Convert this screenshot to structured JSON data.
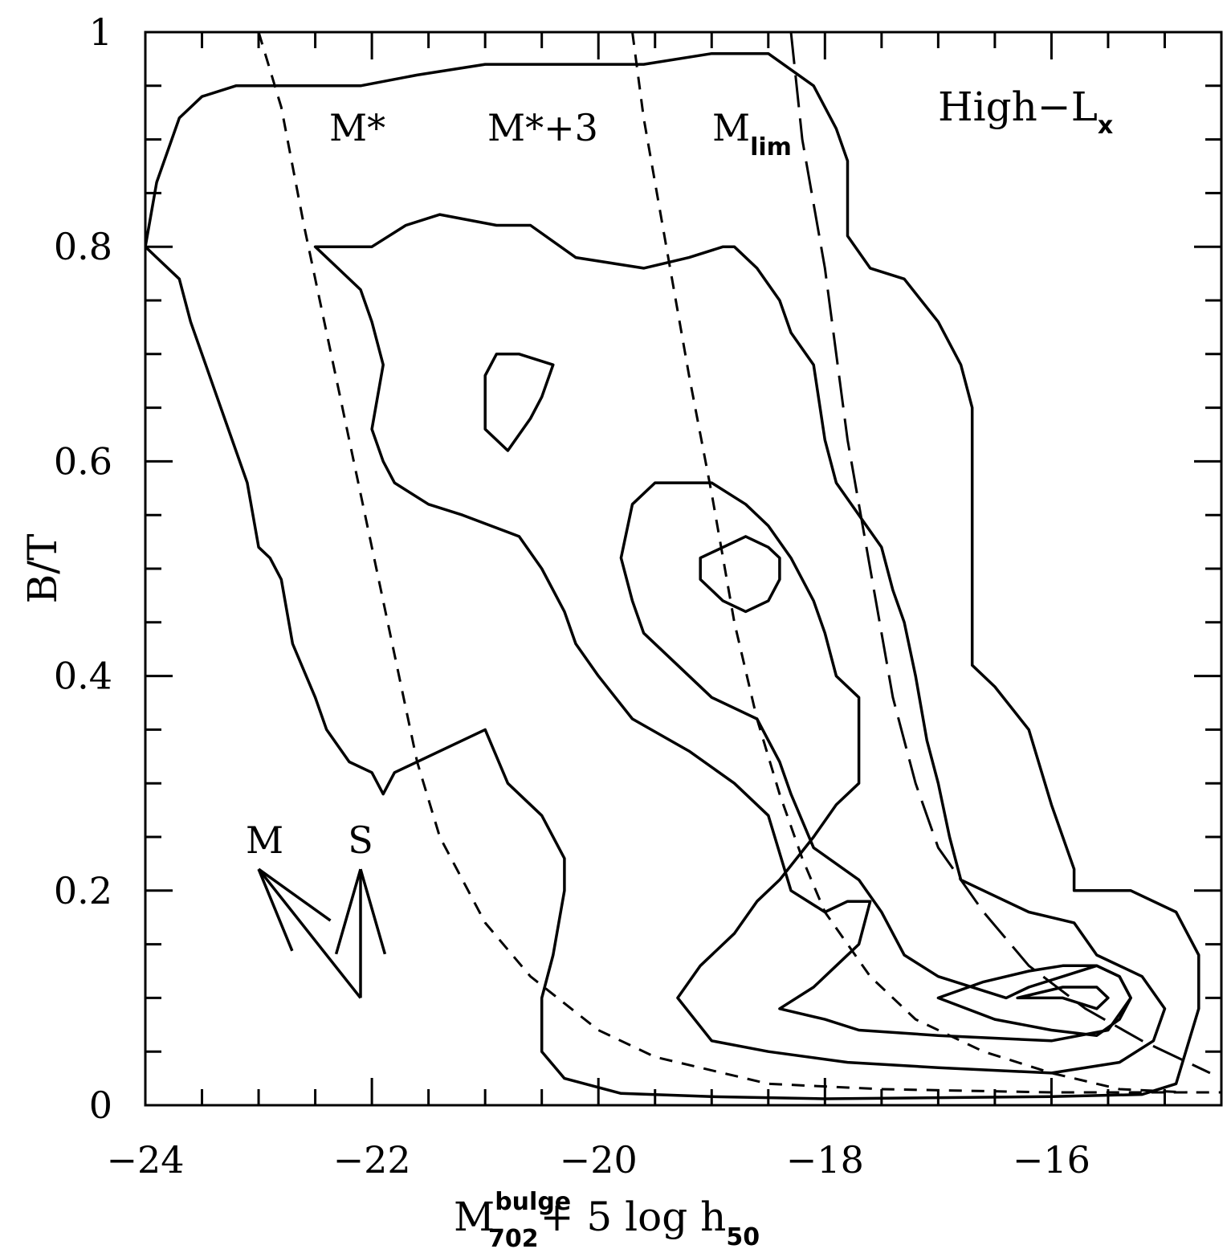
{
  "chart_data": {
    "type": "contour",
    "panel_label": {
      "main": "High−L",
      "sub": "x"
    },
    "xlabel": {
      "main": "M",
      "sup": "bulge",
      "sub": "702",
      "rest": "+ 5 log h",
      "rest_sub": "50"
    },
    "ylabel": "B/T",
    "xlim": [
      -24,
      -14.5
    ],
    "ylim": [
      0,
      1
    ],
    "x_ticks": [
      -24,
      -22,
      -20,
      -18,
      -16
    ],
    "x_tick_labels": [
      "−24",
      "−22",
      "−20",
      "−18",
      "−16"
    ],
    "y_ticks": [
      0,
      0.2,
      0.4,
      0.6,
      0.8,
      1
    ],
    "y_tick_labels": [
      "0",
      "0.2",
      "0.4",
      "0.6",
      "0.8",
      "1"
    ],
    "contours": [
      {
        "level": 1,
        "closed": true,
        "points": [
          [
            -23.0,
            0.95
          ],
          [
            -22.1,
            0.95
          ],
          [
            -21.6,
            0.96
          ],
          [
            -21.0,
            0.97
          ],
          [
            -20.4,
            0.97
          ],
          [
            -19.6,
            0.97
          ],
          [
            -19.0,
            0.98
          ],
          [
            -18.5,
            0.98
          ],
          [
            -18.1,
            0.95
          ],
          [
            -17.9,
            0.91
          ],
          [
            -17.8,
            0.88
          ],
          [
            -17.8,
            0.81
          ],
          [
            -17.6,
            0.78
          ],
          [
            -17.3,
            0.77
          ],
          [
            -17.0,
            0.73
          ],
          [
            -16.8,
            0.69
          ],
          [
            -16.7,
            0.65
          ],
          [
            -16.7,
            0.41
          ],
          [
            -16.5,
            0.39
          ],
          [
            -16.2,
            0.35
          ],
          [
            -16.0,
            0.28
          ],
          [
            -15.8,
            0.22
          ],
          [
            -15.8,
            0.2
          ],
          [
            -15.3,
            0.2
          ],
          [
            -14.9,
            0.18
          ],
          [
            -14.7,
            0.14
          ],
          [
            -14.7,
            0.09
          ],
          [
            -14.9,
            0.02
          ],
          [
            -15.2,
            0.01
          ],
          [
            -16.0,
            0.008
          ],
          [
            -17.0,
            0.007
          ],
          [
            -18.0,
            0.006
          ],
          [
            -19.0,
            0.008
          ],
          [
            -19.8,
            0.011
          ],
          [
            -20.3,
            0.025
          ],
          [
            -20.5,
            0.05
          ],
          [
            -20.5,
            0.1
          ],
          [
            -20.4,
            0.14
          ],
          [
            -20.3,
            0.2
          ],
          [
            -20.3,
            0.23
          ],
          [
            -20.5,
            0.27
          ],
          [
            -20.8,
            0.3
          ],
          [
            -21.0,
            0.35
          ],
          [
            -21.8,
            0.31
          ],
          [
            -21.9,
            0.29
          ],
          [
            -22.0,
            0.31
          ],
          [
            -22.2,
            0.32
          ],
          [
            -22.4,
            0.35
          ],
          [
            -22.5,
            0.38
          ],
          [
            -22.7,
            0.43
          ],
          [
            -22.8,
            0.49
          ],
          [
            -22.9,
            0.51
          ],
          [
            -23.0,
            0.52
          ],
          [
            -23.1,
            0.58
          ],
          [
            -23.2,
            0.61
          ],
          [
            -23.3,
            0.64
          ],
          [
            -23.4,
            0.67
          ],
          [
            -23.5,
            0.7
          ],
          [
            -23.6,
            0.73
          ],
          [
            -23.7,
            0.77
          ],
          [
            -23.9,
            0.79
          ],
          [
            -24.0,
            0.8
          ],
          [
            -23.9,
            0.86
          ],
          [
            -23.7,
            0.92
          ],
          [
            -23.5,
            0.94
          ],
          [
            -23.2,
            0.95
          ],
          [
            -23.0,
            0.95
          ]
        ]
      },
      {
        "level": 2,
        "closed": true,
        "points": [
          [
            -22.0,
            0.8
          ],
          [
            -21.7,
            0.82
          ],
          [
            -21.4,
            0.83
          ],
          [
            -20.9,
            0.82
          ],
          [
            -20.6,
            0.82
          ],
          [
            -20.2,
            0.79
          ],
          [
            -19.6,
            0.78
          ],
          [
            -19.2,
            0.79
          ],
          [
            -18.9,
            0.8
          ],
          [
            -18.8,
            0.8
          ],
          [
            -18.6,
            0.78
          ],
          [
            -18.4,
            0.75
          ],
          [
            -18.3,
            0.72
          ],
          [
            -18.1,
            0.69
          ],
          [
            -18.0,
            0.62
          ],
          [
            -17.9,
            0.58
          ],
          [
            -17.7,
            0.55
          ],
          [
            -17.5,
            0.52
          ],
          [
            -17.4,
            0.48
          ],
          [
            -17.3,
            0.45
          ],
          [
            -17.2,
            0.4
          ],
          [
            -17.1,
            0.34
          ],
          [
            -17.0,
            0.3
          ],
          [
            -16.9,
            0.25
          ],
          [
            -16.8,
            0.21
          ],
          [
            -16.6,
            0.2
          ],
          [
            -16.2,
            0.18
          ],
          [
            -15.8,
            0.17
          ],
          [
            -15.6,
            0.14
          ],
          [
            -15.2,
            0.12
          ],
          [
            -15.0,
            0.09
          ],
          [
            -15.1,
            0.06
          ],
          [
            -15.4,
            0.04
          ],
          [
            -16.0,
            0.03
          ],
          [
            -17.0,
            0.035
          ],
          [
            -17.8,
            0.04
          ],
          [
            -18.5,
            0.05
          ],
          [
            -19.0,
            0.06
          ],
          [
            -19.3,
            0.1
          ],
          [
            -19.1,
            0.13
          ],
          [
            -18.8,
            0.16
          ],
          [
            -18.6,
            0.19
          ],
          [
            -18.4,
            0.21
          ],
          [
            -18.1,
            0.25
          ],
          [
            -17.9,
            0.28
          ],
          [
            -17.7,
            0.3
          ],
          [
            -17.7,
            0.38
          ],
          [
            -17.9,
            0.4
          ],
          [
            -18.0,
            0.44
          ],
          [
            -18.1,
            0.47
          ],
          [
            -18.3,
            0.51
          ],
          [
            -18.5,
            0.54
          ],
          [
            -18.7,
            0.56
          ],
          [
            -19.0,
            0.58
          ],
          [
            -19.3,
            0.58
          ],
          [
            -19.5,
            0.58
          ],
          [
            -19.7,
            0.56
          ],
          [
            -19.8,
            0.51
          ],
          [
            -19.7,
            0.47
          ],
          [
            -19.6,
            0.44
          ],
          [
            -19.3,
            0.41
          ],
          [
            -19.0,
            0.38
          ],
          [
            -18.6,
            0.36
          ],
          [
            -18.4,
            0.32
          ],
          [
            -18.3,
            0.29
          ],
          [
            -18.1,
            0.24
          ],
          [
            -17.7,
            0.21
          ],
          [
            -17.5,
            0.18
          ],
          [
            -17.3,
            0.14
          ],
          [
            -17.0,
            0.12
          ],
          [
            -16.4,
            0.1
          ],
          [
            -16.2,
            0.11
          ],
          [
            -15.9,
            0.12
          ],
          [
            -15.6,
            0.13
          ],
          [
            -15.4,
            0.12
          ],
          [
            -15.3,
            0.1
          ],
          [
            -15.5,
            0.07
          ],
          [
            -16.0,
            0.06
          ],
          [
            -17.0,
            0.065
          ],
          [
            -17.7,
            0.07
          ],
          [
            -18.0,
            0.08
          ],
          [
            -18.4,
            0.09
          ],
          [
            -18.1,
            0.11
          ],
          [
            -17.9,
            0.13
          ],
          [
            -17.7,
            0.15
          ],
          [
            -17.6,
            0.19
          ],
          [
            -17.8,
            0.19
          ],
          [
            -18.0,
            0.18
          ],
          [
            -18.3,
            0.2
          ],
          [
            -18.5,
            0.27
          ],
          [
            -18.8,
            0.3
          ],
          [
            -19.2,
            0.33
          ],
          [
            -19.7,
            0.36
          ],
          [
            -20.0,
            0.4
          ],
          [
            -20.2,
            0.43
          ],
          [
            -20.3,
            0.46
          ],
          [
            -20.5,
            0.5
          ],
          [
            -20.7,
            0.53
          ],
          [
            -21.2,
            0.55
          ],
          [
            -21.5,
            0.56
          ],
          [
            -21.8,
            0.58
          ],
          [
            -21.9,
            0.6
          ],
          [
            -22.0,
            0.63
          ],
          [
            -21.9,
            0.69
          ],
          [
            -22.0,
            0.73
          ],
          [
            -22.1,
            0.76
          ],
          [
            -22.3,
            0.78
          ],
          [
            -22.5,
            0.8
          ],
          [
            -22.0,
            0.8
          ]
        ]
      },
      {
        "level": 3,
        "closed": true,
        "points": [
          [
            -21.0,
            0.68
          ],
          [
            -20.9,
            0.7
          ],
          [
            -20.7,
            0.7
          ],
          [
            -20.4,
            0.69
          ],
          [
            -20.5,
            0.66
          ],
          [
            -20.6,
            0.64
          ],
          [
            -20.8,
            0.61
          ],
          [
            -21.0,
            0.63
          ],
          [
            -21.0,
            0.65
          ],
          [
            -21.0,
            0.68
          ]
        ]
      },
      {
        "level": 4,
        "closed": true,
        "points": [
          [
            -18.7,
            0.53
          ],
          [
            -18.5,
            0.52
          ],
          [
            -18.4,
            0.51
          ],
          [
            -18.4,
            0.49
          ],
          [
            -18.5,
            0.47
          ],
          [
            -18.7,
            0.46
          ],
          [
            -18.9,
            0.47
          ],
          [
            -19.1,
            0.49
          ],
          [
            -19.1,
            0.51
          ],
          [
            -18.9,
            0.52
          ],
          [
            -18.7,
            0.53
          ]
        ]
      },
      {
        "level": 5,
        "closed": true,
        "points": [
          [
            -17.0,
            0.1
          ],
          [
            -16.6,
            0.115
          ],
          [
            -16.2,
            0.125
          ],
          [
            -15.9,
            0.13
          ],
          [
            -15.6,
            0.13
          ],
          [
            -15.4,
            0.12
          ],
          [
            -15.3,
            0.1
          ],
          [
            -15.4,
            0.08
          ],
          [
            -15.6,
            0.065
          ],
          [
            -16.0,
            0.07
          ],
          [
            -16.5,
            0.08
          ],
          [
            -17.0,
            0.1
          ]
        ]
      },
      {
        "level": 6,
        "closed": true,
        "points": [
          [
            -16.3,
            0.1
          ],
          [
            -15.9,
            0.11
          ],
          [
            -15.6,
            0.11
          ],
          [
            -15.5,
            0.1
          ],
          [
            -15.6,
            0.09
          ],
          [
            -15.9,
            0.1
          ],
          [
            -16.3,
            0.1
          ]
        ]
      }
    ],
    "reference_curves": [
      {
        "label": "M*",
        "style": "short-dash",
        "points": [
          [
            -23.0,
            1.0
          ],
          [
            -22.8,
            0.93
          ],
          [
            -22.6,
            0.82
          ],
          [
            -22.4,
            0.72
          ],
          [
            -22.2,
            0.62
          ],
          [
            -22.0,
            0.52
          ],
          [
            -21.8,
            0.42
          ],
          [
            -21.6,
            0.32
          ],
          [
            -21.4,
            0.25
          ],
          [
            -21.0,
            0.17
          ],
          [
            -20.6,
            0.12
          ],
          [
            -20.0,
            0.07
          ],
          [
            -19.5,
            0.045
          ],
          [
            -18.5,
            0.02
          ],
          [
            -17.5,
            0.015
          ],
          [
            -16.0,
            0.012
          ],
          [
            -14.5,
            0.012
          ]
        ]
      },
      {
        "label": "M*+3",
        "style": "short-dash",
        "points": [
          [
            -19.7,
            1.0
          ],
          [
            -19.6,
            0.92
          ],
          [
            -19.4,
            0.8
          ],
          [
            -19.2,
            0.68
          ],
          [
            -19.0,
            0.57
          ],
          [
            -18.8,
            0.45
          ],
          [
            -18.6,
            0.36
          ],
          [
            -18.4,
            0.29
          ],
          [
            -18.2,
            0.23
          ],
          [
            -18.0,
            0.18
          ],
          [
            -17.6,
            0.12
          ],
          [
            -17.2,
            0.08
          ],
          [
            -16.6,
            0.05
          ],
          [
            -16.0,
            0.03
          ],
          [
            -15.4,
            0.015
          ],
          [
            -14.8,
            0.012
          ]
        ]
      },
      {
        "label": "Mlim",
        "style": "long-dash",
        "points": [
          [
            -18.3,
            1.0
          ],
          [
            -18.2,
            0.9
          ],
          [
            -18.0,
            0.78
          ],
          [
            -17.8,
            0.62
          ],
          [
            -17.6,
            0.5
          ],
          [
            -17.4,
            0.38
          ],
          [
            -17.2,
            0.3
          ],
          [
            -17.0,
            0.24
          ],
          [
            -16.6,
            0.18
          ],
          [
            -16.2,
            0.13
          ],
          [
            -15.7,
            0.09
          ],
          [
            -15.2,
            0.06
          ],
          [
            -14.6,
            0.03
          ]
        ]
      }
    ],
    "curve_labels": [
      {
        "text": "M*",
        "sub": ""
      },
      {
        "text": "M*+3",
        "sub": ""
      },
      {
        "text": "M",
        "sub": "lim"
      }
    ],
    "vectors": [
      {
        "label": "M",
        "tail": [
          -22.1,
          0.1
        ],
        "head": [
          -23.0,
          0.22
        ]
      },
      {
        "label": "S",
        "tail": [
          -22.1,
          0.1
        ],
        "head": [
          -22.1,
          0.22
        ]
      }
    ]
  }
}
